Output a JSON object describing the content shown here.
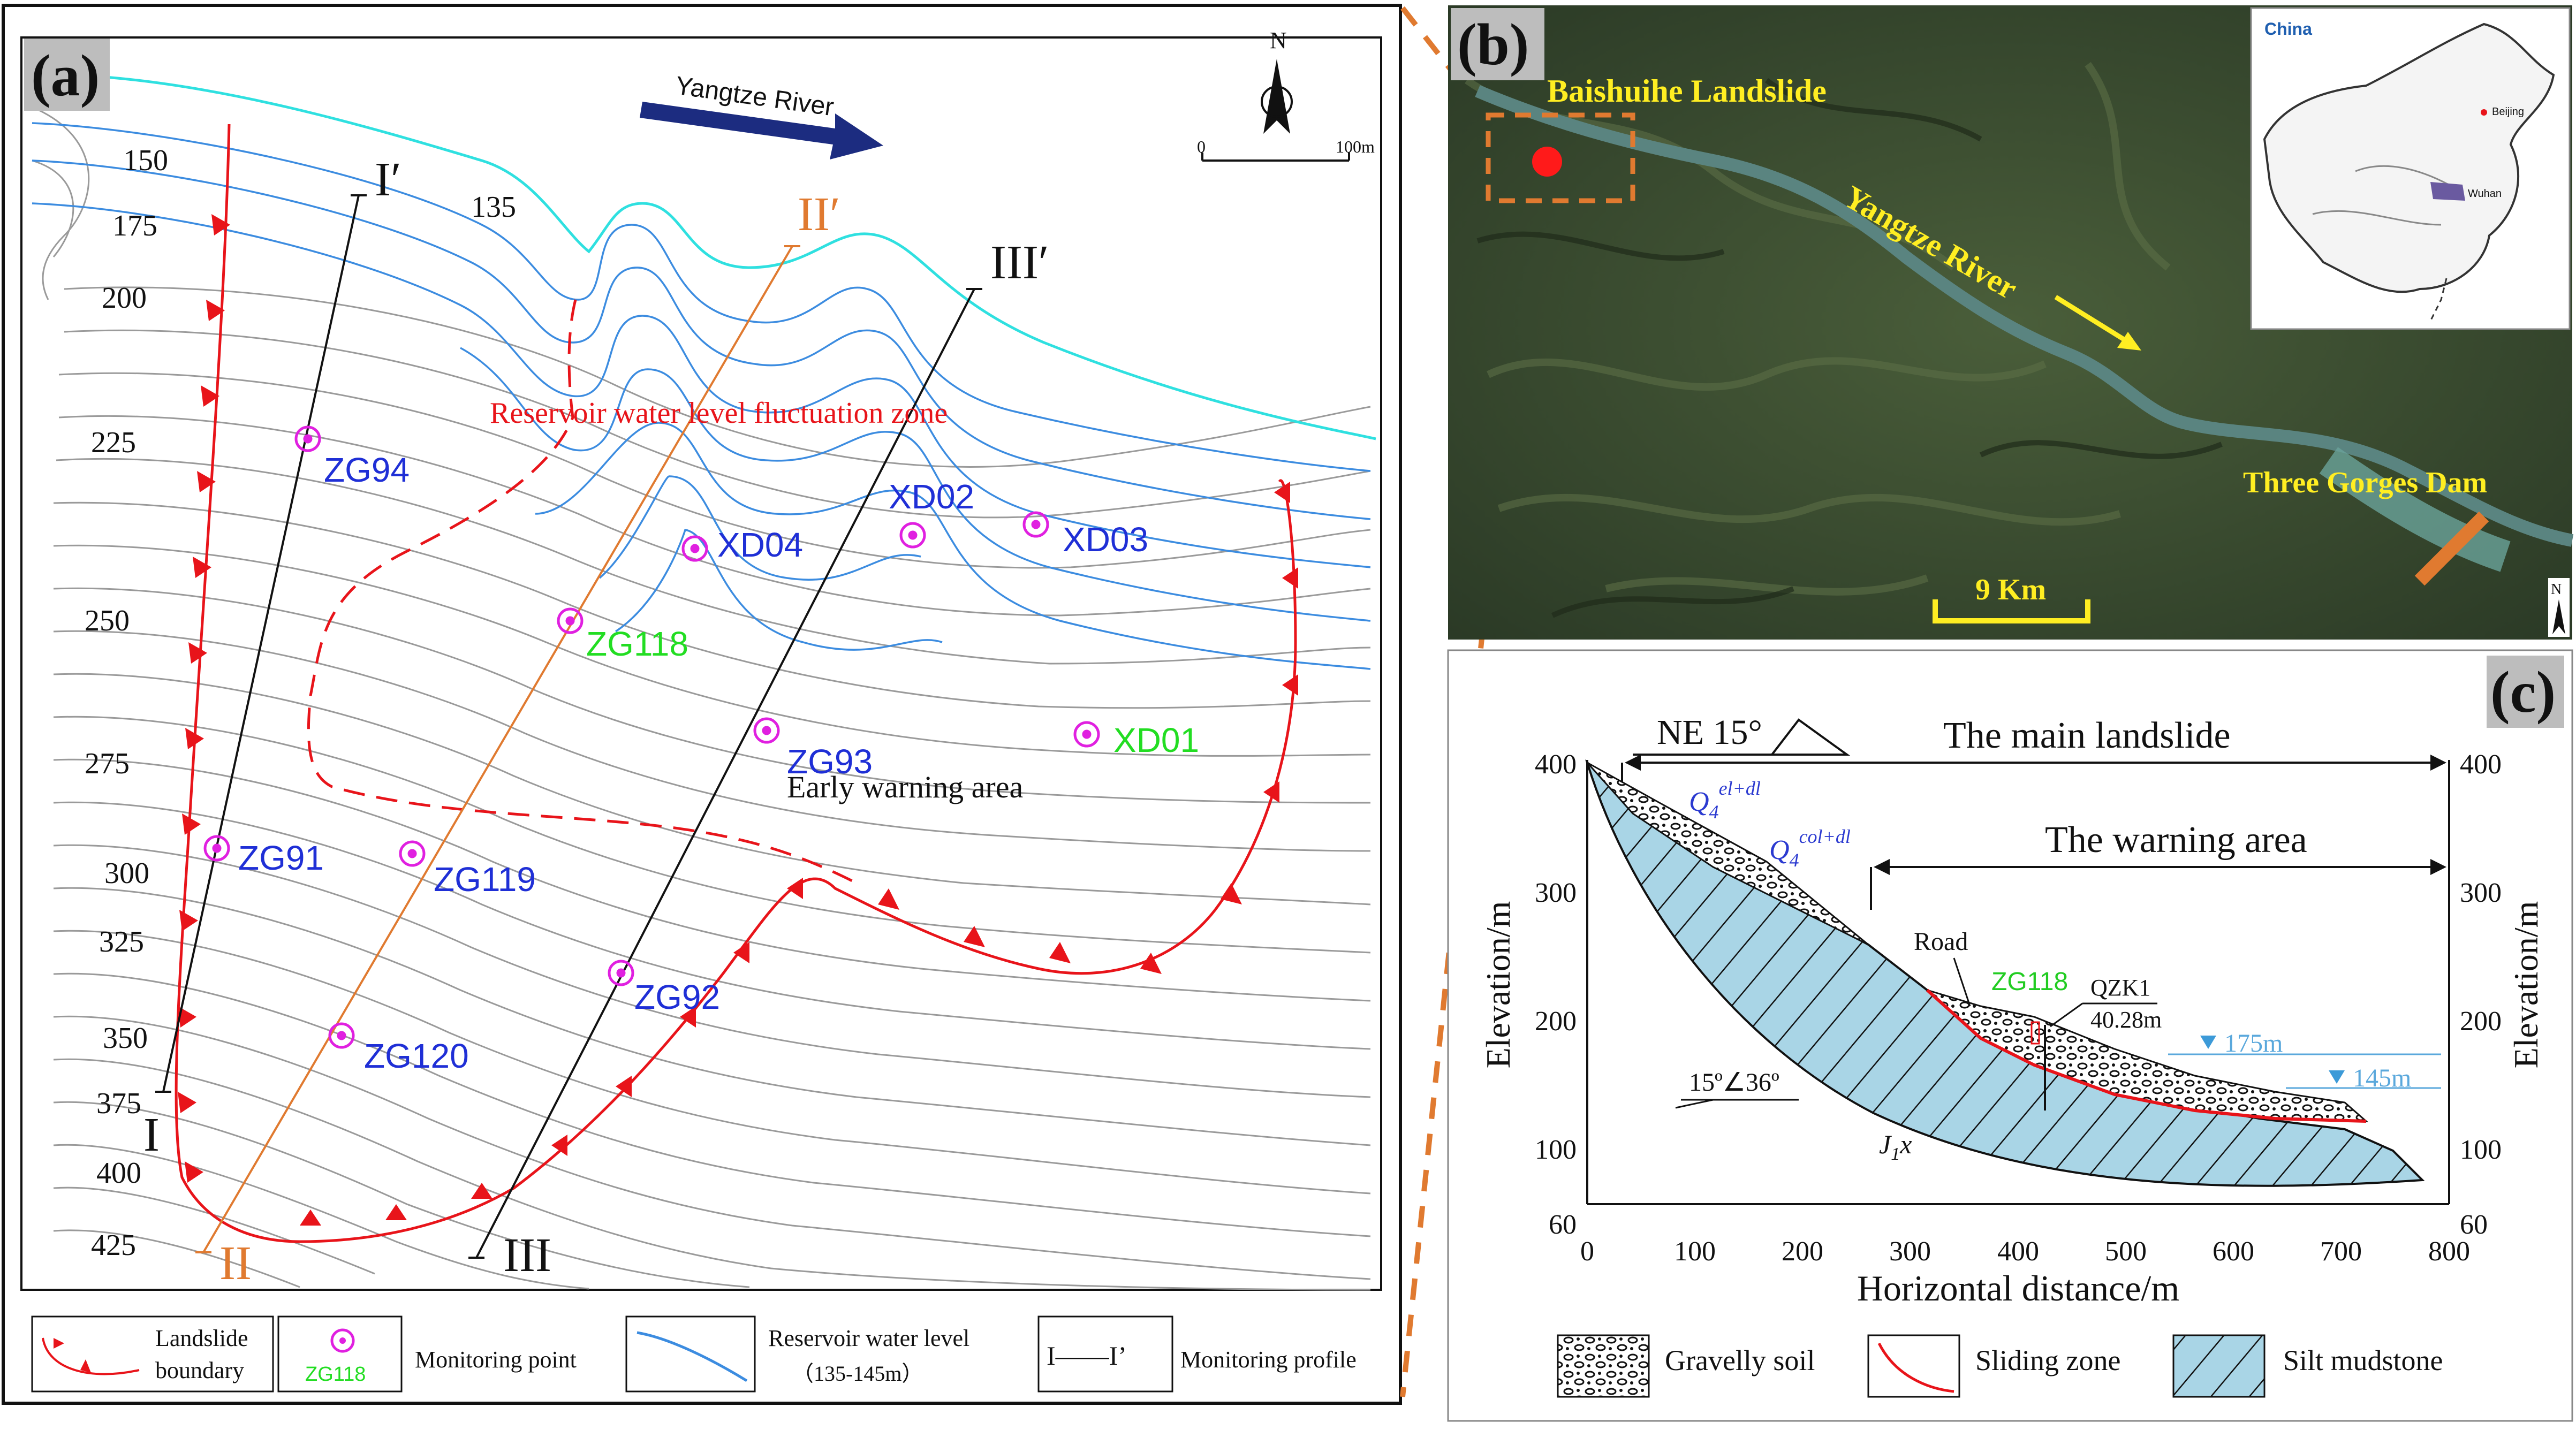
{
  "panel_a": {
    "label": "(a)",
    "river_label": "Yangtze River",
    "north": "N",
    "scale": {
      "zero": "0",
      "end": "100m"
    },
    "contour_labels": [
      "150",
      "175",
      "200",
      "225",
      "250",
      "275",
      "300",
      "325",
      "350",
      "375",
      "400",
      "425"
    ],
    "contour_135": "135",
    "zone_label": "Reservoir water level fluctuation zone",
    "early_warning": "Early warning area",
    "profiles": {
      "i_top": "I′",
      "i_bottom": "I",
      "ii_top": "II′",
      "ii_bottom": "II",
      "iii_top": "III′",
      "iii_bottom": "III"
    },
    "points_blue": [
      "ZG94",
      "XD04",
      "XD02",
      "XD03",
      "ZG93",
      "ZG91",
      "ZG119",
      "ZG92",
      "ZG120"
    ],
    "points_green": [
      "ZG118",
      "XD01"
    ],
    "legend": {
      "boundary_l1": "Landslide",
      "boundary_l2": "boundary",
      "mp_sample": "ZG118",
      "monitoring_point": "Monitoring point",
      "rwl_l1": "Reservoir water level",
      "rwl_l2": "（135-145m）",
      "profile_symbol": "I——I’",
      "monitoring_profile": "Monitoring profile"
    }
  },
  "panel_b": {
    "label": "(b)",
    "landslide": "Baishuihe Landslide",
    "river": "Yangtze River",
    "dam": "Three Gorges Dam",
    "scale": "9 Km",
    "inset_title": "China",
    "inset_city1": "Beijing",
    "inset_city2": "Wuhan",
    "north": "N"
  },
  "panel_c": {
    "label": "(c)",
    "orientation": "NE 15°",
    "main_landslide": "The main landslide",
    "warning_area": "The warning area",
    "y_label": "Elevation/m",
    "x_label": "Horizontal distance/m",
    "y_ticks": [
      "400",
      "300",
      "200",
      "100",
      "60"
    ],
    "x_ticks": [
      "0",
      "100",
      "200",
      "300",
      "400",
      "500",
      "600",
      "700",
      "800"
    ],
    "q_el_base": "Q",
    "q_el_sub": "4",
    "q_el_sup": "el+dl",
    "q_col_base": "Q",
    "q_col_sub": "4",
    "q_col_sup": "col+dl",
    "road": "Road",
    "zg118": "ZG118",
    "qzk1": "QZK1",
    "qzk1_depth": "40.28m",
    "wl_175": "175m",
    "wl_145": "145m",
    "dip": "15º∠36º",
    "jx": "J",
    "jx_sub": "1",
    "jx_end": "x",
    "legend": {
      "gravelly": "Gravelly soil",
      "sliding": "Sliding zone",
      "silt": "Silt mudstone"
    }
  },
  "colors": {
    "boundary_red": "#e8141a",
    "monitor_magenta": "#e020e0",
    "label_blue": "#1f2fd6",
    "label_green": "#22dd22",
    "reservoir_cyan": "#2fe0e0",
    "contour_blue": "#3c8ce0",
    "profile_orange": "#e07a30",
    "satellite_yellow": "#ffee22",
    "silt_blue": "#a9d5e6"
  }
}
